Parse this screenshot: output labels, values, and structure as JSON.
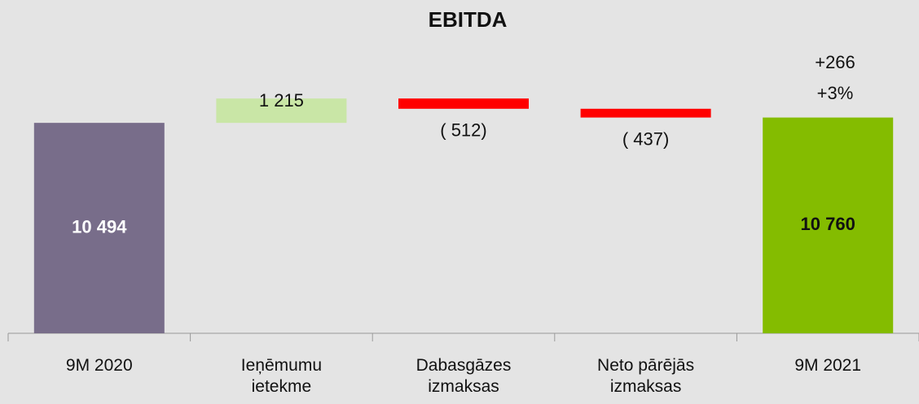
{
  "chart_data": {
    "type": "waterfall",
    "title": "EBITDA",
    "categories": [
      "9M 2020",
      "Ieņēmumu ietekme",
      "Dabasgāzes izmaksas",
      "Neto pārējās izmaksas",
      "9M 2021"
    ],
    "values": [
      10494,
      1215,
      -512,
      -437,
      10760
    ],
    "value_labels": [
      "10 494",
      "1 215",
      "( 512)",
      "( 437)",
      "10 760"
    ],
    "measure": [
      "total",
      "relative",
      "relative",
      "relative",
      "total"
    ],
    "colors": [
      "#786d8a",
      "#c9e6a6",
      "#ff0000",
      "#ff0000",
      "#84bc00"
    ],
    "annotations": [
      "+266",
      "+3%"
    ],
    "ylim": [
      0,
      12000
    ]
  }
}
